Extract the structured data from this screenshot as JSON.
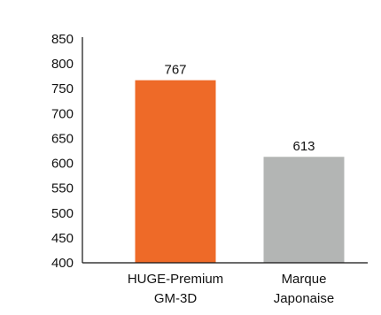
{
  "chart_data": {
    "type": "bar",
    "categories": [
      [
        "HUGE-Premium",
        "GM-3D"
      ],
      [
        "Marque",
        "Japonaise"
      ]
    ],
    "values": [
      767,
      613
    ],
    "data_labels": [
      "767",
      "613"
    ],
    "colors": [
      "#EE6A28",
      "#B3B5B4"
    ],
    "ylim": [
      400,
      850
    ],
    "yticks": [
      400,
      450,
      500,
      550,
      600,
      650,
      700,
      750,
      800,
      850
    ],
    "ytick_labels": [
      "400",
      "450",
      "500",
      "550",
      "600",
      "650",
      "700",
      "750",
      "800",
      "850"
    ],
    "title": "",
    "xlabel": "",
    "ylabel": "",
    "grid": false,
    "legend": "none"
  }
}
